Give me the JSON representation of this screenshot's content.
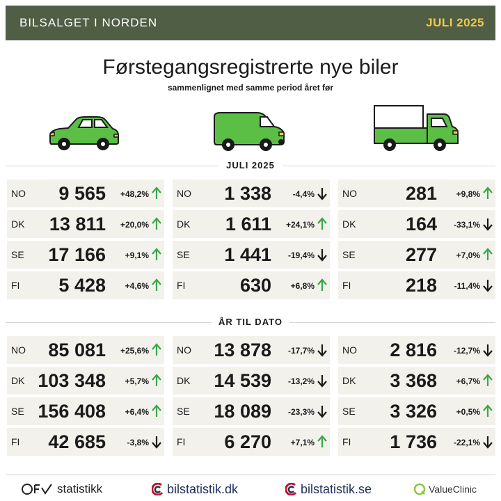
{
  "header": {
    "brand": "BILSALGET I NORDEN",
    "period": "JULI 2025"
  },
  "title": "Førstegangsregistrerte nye biler",
  "subtitle": "sammenlignet med samme period året før",
  "colors": {
    "header_bg": "#4f5e44",
    "period_text": "#f2c94c",
    "vehicle_green": "#5bbf45",
    "arrow_up": "#3aa64a",
    "arrow_down": "#1a1a1a",
    "row_bg": "#f3f1ec"
  },
  "icons": [
    "car-icon",
    "van-icon",
    "truck-icon"
  ],
  "sections": [
    {
      "title": "JULI 2025",
      "columns": [
        [
          {
            "country": "NO",
            "value": "9 565",
            "change": "+48,2%",
            "direction": "up"
          },
          {
            "country": "DK",
            "value": "13 811",
            "change": "+20,0%",
            "direction": "up"
          },
          {
            "country": "SE",
            "value": "17 166",
            "change": "+9,1%",
            "direction": "up"
          },
          {
            "country": "FI",
            "value": "5 428",
            "change": "+4,6%",
            "direction": "up"
          }
        ],
        [
          {
            "country": "NO",
            "value": "1 338",
            "change": "-4,4%",
            "direction": "down"
          },
          {
            "country": "DK",
            "value": "1 611",
            "change": "+24,1%",
            "direction": "up"
          },
          {
            "country": "SE",
            "value": "1 441",
            "change": "-19,4%",
            "direction": "down"
          },
          {
            "country": "FI",
            "value": "630",
            "change": "+6,8%",
            "direction": "up"
          }
        ],
        [
          {
            "country": "NO",
            "value": "281",
            "change": "+9,8%",
            "direction": "up"
          },
          {
            "country": "DK",
            "value": "164",
            "change": "-33,1%",
            "direction": "down"
          },
          {
            "country": "SE",
            "value": "277",
            "change": "+7,0%",
            "direction": "up"
          },
          {
            "country": "FI",
            "value": "218",
            "change": "-11,4%",
            "direction": "down"
          }
        ]
      ]
    },
    {
      "title": "ÅR TIL DATO",
      "columns": [
        [
          {
            "country": "NO",
            "value": "85 081",
            "change": "+25,6%",
            "direction": "up"
          },
          {
            "country": "DK",
            "value": "103 348",
            "change": "+5,7%",
            "direction": "up"
          },
          {
            "country": "SE",
            "value": "156 408",
            "change": "+6,4%",
            "direction": "up"
          },
          {
            "country": "FI",
            "value": "42 685",
            "change": "-3,8%",
            "direction": "down"
          }
        ],
        [
          {
            "country": "NO",
            "value": "13 878",
            "change": "-17,7%",
            "direction": "down"
          },
          {
            "country": "DK",
            "value": "14 539",
            "change": "-13,2%",
            "direction": "down"
          },
          {
            "country": "SE",
            "value": "18 089",
            "change": "-23,3%",
            "direction": "down"
          },
          {
            "country": "FI",
            "value": "6 270",
            "change": "+7,1%",
            "direction": "up"
          }
        ],
        [
          {
            "country": "NO",
            "value": "2 816",
            "change": "-12,7%",
            "direction": "down"
          },
          {
            "country": "DK",
            "value": "3 368",
            "change": "+6,7%",
            "direction": "up"
          },
          {
            "country": "SE",
            "value": "3 326",
            "change": "+0,5%",
            "direction": "up"
          },
          {
            "country": "FI",
            "value": "1 736",
            "change": "-22,1%",
            "direction": "down"
          }
        ]
      ]
    }
  ],
  "footer": {
    "ofv": "statistikk",
    "bilstatistik_dk": "bilstatistik.dk",
    "bilstatistik_se": "bilstatistik.se",
    "valueclinic": "ValueClinic"
  }
}
